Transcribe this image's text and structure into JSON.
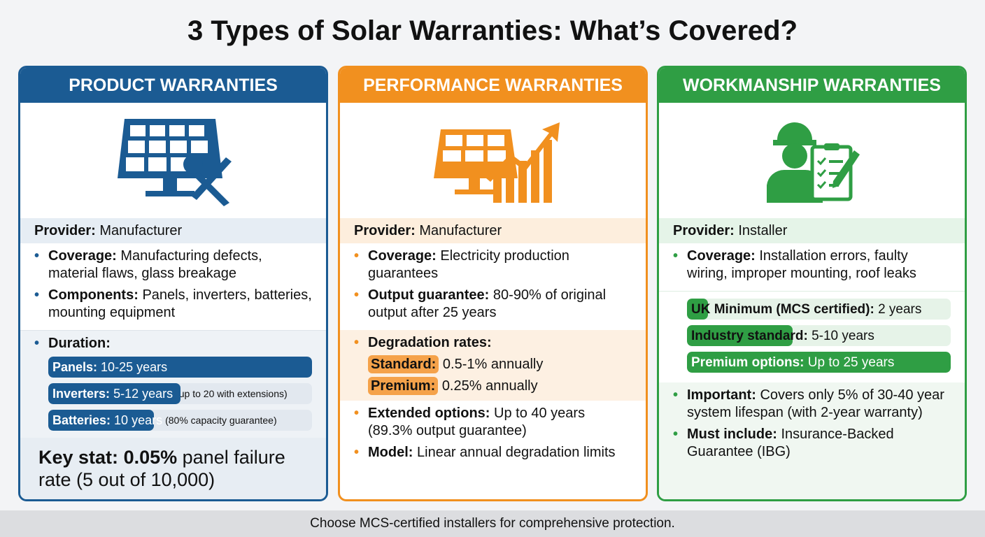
{
  "title": "3 Types of Solar Warranties: What’s Covered?",
  "colors": {
    "product": "#1b5b93",
    "performance": "#f1901f",
    "workmanship": "#2f9e44"
  },
  "product": {
    "header": "PRODUCT WARRANTIES",
    "icon": "solar-panel-wrench-icon",
    "provider_label": "Provider:",
    "provider": "Manufacturer",
    "coverage_label": "Coverage:",
    "coverage": "Manufacturing defects, material flaws, glass breakage",
    "components_label": "Components:",
    "components": "Panels, inverters, batteries, mounting equipment",
    "duration_label": "Duration:",
    "durations": [
      {
        "label": "Panels:",
        "value": "10-25 years",
        "note": "",
        "fill": 1.0
      },
      {
        "label": "Inverters:",
        "value": "5-12 years",
        "note": "(up to 20 with extensions)",
        "fill": 0.5
      },
      {
        "label": "Batteries:",
        "value": "10 years",
        "note": "(80% capacity guarantee)",
        "fill": 0.4
      }
    ],
    "stat_label": "Key stat:",
    "stat_value": "0.05%",
    "stat_text": "panel failure rate (5 out of 10,000)"
  },
  "performance": {
    "header": "PERFORMANCE WARRANTIES",
    "icon": "solar-panel-growth-chart-icon",
    "provider_label": "Provider:",
    "provider": "Manufacturer",
    "coverage_label": "Coverage:",
    "coverage": "Electricity production guarantees",
    "output_label": "Output guarantee:",
    "output": "80-90% of original output after 25 years",
    "degradation_label": "Degradation rates:",
    "rates": [
      {
        "label": "Standard:",
        "value": "0.5-1% annually"
      },
      {
        "label": "Premium:",
        "value": "0.25% annually"
      }
    ],
    "extended_label": "Extended options:",
    "extended": "Up to 40 years (89.3% output guarantee)",
    "model_label": "Model:",
    "model": "Linear annual degradation limits"
  },
  "workmanship": {
    "header": "WORKMANSHIP WARRANTIES",
    "icon": "installer-clipboard-icon",
    "provider_label": "Provider:",
    "provider": "Installer",
    "coverage_label": "Coverage:",
    "coverage": "Installation errors, faulty wiring, improper mounting, roof leaks",
    "tiers": [
      {
        "label": "UK Minimum (MCS certified):",
        "value": "2 years",
        "fill": 0.08
      },
      {
        "label": "Industry standard:",
        "value": "5-10 years",
        "fill": 0.4
      },
      {
        "label": "Premium options:",
        "value": "Up to 25 years",
        "fill": 1.0
      }
    ],
    "important_label": "Important:",
    "important": "Covers only 5% of 30-40 year system lifespan (with 2-year warranty)",
    "must_label": "Must include:",
    "must": "Insurance-Backed Guarantee (IBG)"
  },
  "footer": "Choose MCS-certified installers for comprehensive protection."
}
